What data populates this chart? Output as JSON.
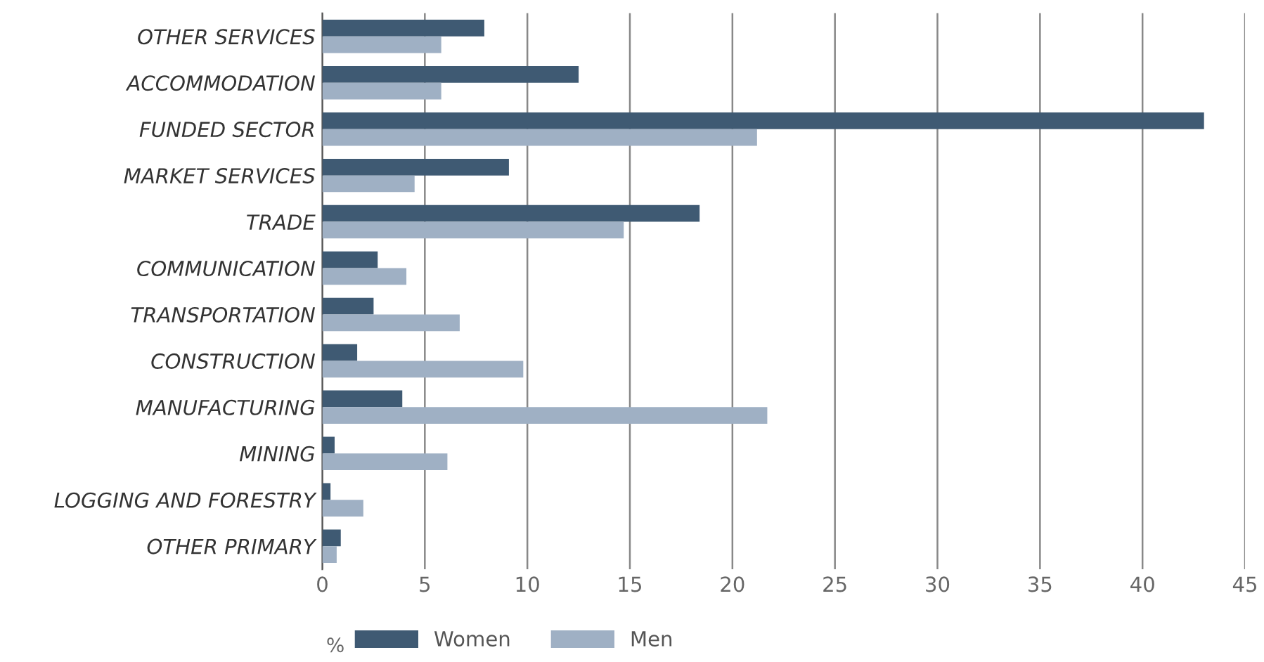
{
  "chart_data": {
    "type": "bar",
    "orientation": "horizontal",
    "xlabel": "%",
    "categories": [
      "OTHER SERVICES",
      "ACCOMMODATION",
      "FUNDED SECTOR",
      "MARKET SERVICES",
      "TRADE",
      "COMMUNICATION",
      "TRANSPORTATION",
      "CONSTRUCTION",
      "MANUFACTURING",
      "MINING",
      "LOGGING AND FORESTRY",
      "OTHER PRIMARY"
    ],
    "series": [
      {
        "name": "Women",
        "color": "#3f5a73",
        "values": [
          7.9,
          12.5,
          43.0,
          9.1,
          18.4,
          2.7,
          2.5,
          1.7,
          3.9,
          0.6,
          0.4,
          0.9
        ]
      },
      {
        "name": "Men",
        "color": "#9fb0c4",
        "values": [
          5.8,
          5.8,
          21.2,
          4.5,
          14.7,
          4.1,
          6.7,
          9.8,
          21.7,
          6.1,
          2.0,
          0.7
        ]
      }
    ],
    "xlim": [
      0,
      45
    ],
    "xticks": [
      0,
      5,
      10,
      15,
      20,
      25,
      30,
      35,
      40,
      45
    ],
    "grid": "x",
    "legend": "bottom"
  }
}
